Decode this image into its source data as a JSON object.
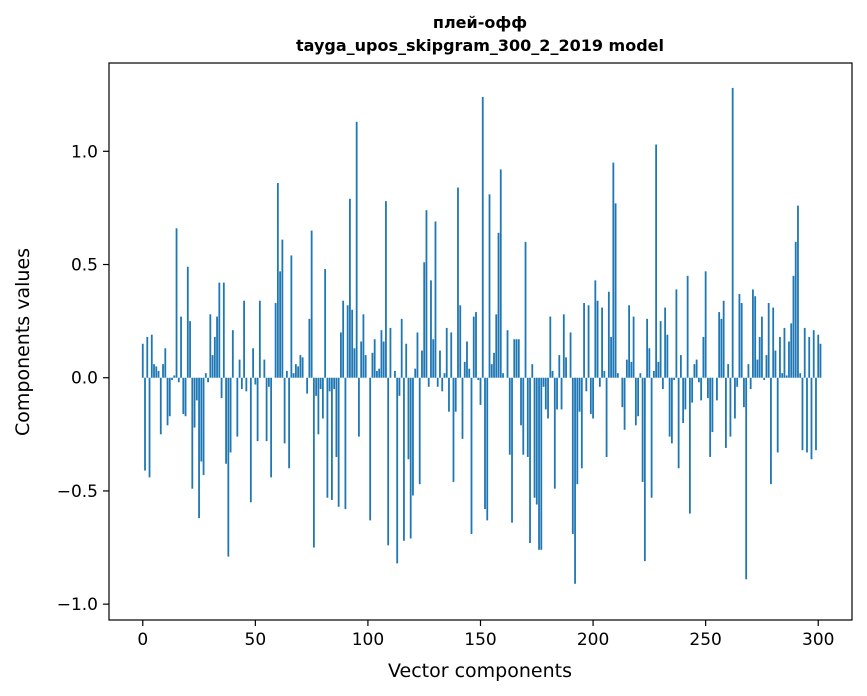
{
  "chart_data": {
    "type": "bar",
    "title": "плей-офф",
    "subtitle": "tayga_upos_skipgram_300_2_2019 model",
    "xlabel": "Vector components",
    "ylabel": "Components values",
    "xlim": [
      -15,
      315
    ],
    "ylim": [
      -1.07,
      1.39
    ],
    "xticks": [
      0,
      50,
      100,
      150,
      200,
      250,
      300
    ],
    "xtick_labels": [
      "0",
      "50",
      "100",
      "150",
      "200",
      "250",
      "300"
    ],
    "yticks": [
      -1.0,
      -0.5,
      0.0,
      0.5,
      1.0
    ],
    "ytick_labels": [
      "−1.0",
      "−0.5",
      "0.0",
      "0.5",
      "1.0"
    ],
    "grid": false,
    "bar_color": "#1f77b4",
    "values": [
      0.15,
      -0.41,
      0.18,
      -0.44,
      0.19,
      0.06,
      0.05,
      0.03,
      -0.25,
      0.06,
      0.13,
      -0.21,
      -0.17,
      -0.01,
      0.01,
      0.66,
      -0.02,
      0.27,
      -0.16,
      -0.17,
      0.49,
      0.25,
      -0.49,
      -0.22,
      -0.1,
      -0.62,
      -0.37,
      -0.43,
      0.02,
      -0.02,
      0.28,
      0.1,
      0.18,
      0.27,
      0.42,
      -0.09,
      0.42,
      -0.38,
      -0.79,
      -0.33,
      0.21,
      0.0,
      -0.26,
      0.08,
      -0.05,
      0.34,
      -0.06,
      0.0,
      -0.55,
      0.13,
      -0.03,
      -0.28,
      0.34,
      0.0,
      0.08,
      -0.28,
      -0.04,
      -0.44,
      0.0,
      0.33,
      0.86,
      0.47,
      0.61,
      -0.29,
      0.03,
      -0.4,
      0.54,
      0.02,
      0.06,
      0.05,
      0.1,
      0.09,
      0.0,
      -0.07,
      0.26,
      0.65,
      -0.75,
      -0.08,
      -0.25,
      -0.05,
      -0.18,
      0.48,
      -0.53,
      -0.06,
      -0.54,
      -0.05,
      -0.35,
      -0.57,
      0.2,
      0.34,
      -0.58,
      0.32,
      0.79,
      0.3,
      0.13,
      1.13,
      -0.26,
      0.16,
      0.28,
      0.1,
      0.0,
      -0.63,
      0.11,
      0.17,
      0.03,
      0.04,
      0.21,
      0.16,
      0.78,
      -0.74,
      0.22,
      0.0,
      0.03,
      -0.82,
      -0.08,
      0.26,
      -0.72,
      0.15,
      -0.36,
      -0.71,
      -0.52,
      0.04,
      0.2,
      -0.47,
      0.12,
      0.51,
      0.74,
      -0.04,
      0.43,
      0.17,
      0.69,
      -0.04,
      0.12,
      -0.06,
      0.02,
      0.22,
      -0.15,
      0.2,
      -0.46,
      -0.15,
      0.84,
      0.32,
      -0.27,
      0.07,
      0.16,
      0.04,
      -0.69,
      0.27,
      0.29,
      -0.01,
      -0.12,
      1.24,
      -0.58,
      -0.63,
      0.81,
      0.06,
      0.11,
      0.28,
      0.64,
      0.92,
      0.02,
      0.0,
      0.21,
      -0.34,
      -0.64,
      0.17,
      0.17,
      0.17,
      -0.21,
      -0.34,
      0.6,
      -0.35,
      -0.73,
      0.06,
      -0.53,
      -0.56,
      -0.76,
      -0.76,
      -0.04,
      -0.14,
      -0.18,
      0.27,
      0.03,
      -0.49,
      -0.14,
      0.1,
      -0.14,
      0.28,
      0.09,
      0.0,
      0.2,
      -0.69,
      -0.91,
      -0.47,
      -0.15,
      -0.4,
      0.33,
      -0.06,
      0.32,
      -0.16,
      -0.18,
      0.43,
      0.34,
      -0.04,
      0.31,
      0.03,
      -0.35,
      0.38,
      0.18,
      0.95,
      0.77,
      0.02,
      0.0,
      -0.13,
      -0.23,
      0.08,
      0.32,
      0.07,
      0.27,
      -0.21,
      -0.17,
      0.02,
      -0.46,
      -0.81,
      0.26,
      0.13,
      -0.53,
      0.03,
      1.03,
      0.07,
      0.25,
      -0.05,
      0.31,
      0.19,
      -0.26,
      -0.29,
      -0.01,
      0.39,
      -0.4,
      0.1,
      -0.2,
      -0.14,
      0.45,
      -0.6,
      -0.11,
      0.06,
      0.08,
      -0.02,
      -0.1,
      0.18,
      0.47,
      -0.09,
      -0.35,
      -0.24,
      0.0,
      -0.1,
      0.29,
      0.26,
      0.34,
      -0.31,
      0.06,
      -0.26,
      1.28,
      -0.18,
      -0.04,
      0.37,
      0.33,
      -0.13,
      -0.89,
      0.06,
      -0.05,
      0.39,
      0.36,
      0.08,
      0.18,
      0.27,
      -0.01,
      0.1,
      0.33,
      -0.47,
      0.31,
      0.12,
      -0.33,
      0.18,
      0.02,
      0.22,
      0.01,
      0.16,
      0.24,
      0.45,
      0.6,
      0.76,
      0.02,
      -0.32,
      0.22,
      -0.33,
      0.18,
      -0.36,
      0.21,
      -0.32,
      0.19,
      0.15
    ]
  }
}
